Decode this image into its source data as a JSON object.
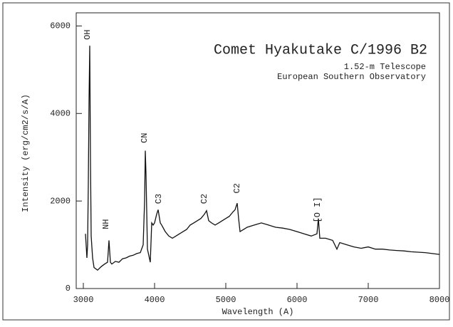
{
  "chart_data": {
    "type": "line",
    "title": "Comet Hyakutake C/1996 B2",
    "subtitle": [
      "1.52-m Telescope",
      "European Southern Observatory"
    ],
    "x_label": "Wavelength (A)",
    "y_label": "Intensity (erg/cm2/s/A)",
    "xlim": [
      2900,
      8000
    ],
    "ylim": [
      0,
      6300
    ],
    "xticks": [
      3000,
      4000,
      5000,
      6000,
      7000,
      8000
    ],
    "yticks": [
      0,
      2000,
      4000,
      6000
    ],
    "grid": false,
    "series": [
      {
        "color": "#111111",
        "x": [
          3030,
          3050,
          3060,
          3070,
          3080,
          3090,
          3100,
          3110,
          3130,
          3150,
          3200,
          3250,
          3300,
          3340,
          3360,
          3380,
          3400,
          3450,
          3500,
          3550,
          3600,
          3650,
          3700,
          3750,
          3800,
          3840,
          3860,
          3870,
          3880,
          3900,
          3920,
          3940,
          3960,
          3980,
          4000,
          4030,
          4050,
          4080,
          4100,
          4150,
          4200,
          4250,
          4300,
          4350,
          4400,
          4450,
          4500,
          4550,
          4600,
          4650,
          4700,
          4730,
          4760,
          4800,
          4850,
          4900,
          4950,
          5000,
          5050,
          5100,
          5130,
          5160,
          5180,
          5200,
          5250,
          5300,
          5400,
          5500,
          5600,
          5700,
          5800,
          5900,
          6000,
          6100,
          6200,
          6280,
          6300,
          6320,
          6400,
          6500,
          6560,
          6600,
          6700,
          6800,
          6900,
          7000,
          7100,
          7200,
          7300,
          7400,
          7500,
          7600,
          7700,
          7800,
          7900,
          8000
        ],
        "values": [
          1250,
          700,
          1000,
          2400,
          4300,
          5550,
          3000,
          1200,
          700,
          480,
          420,
          500,
          560,
          600,
          1100,
          600,
          560,
          620,
          600,
          680,
          700,
          740,
          760,
          800,
          820,
          1000,
          2000,
          3150,
          2600,
          900,
          750,
          600,
          1500,
          1450,
          1500,
          1700,
          1800,
          1500,
          1450,
          1300,
          1200,
          1150,
          1200,
          1250,
          1300,
          1350,
          1450,
          1500,
          1550,
          1600,
          1700,
          1780,
          1550,
          1500,
          1450,
          1500,
          1550,
          1600,
          1650,
          1750,
          1800,
          1950,
          1600,
          1300,
          1350,
          1400,
          1450,
          1500,
          1450,
          1400,
          1380,
          1350,
          1300,
          1250,
          1200,
          1250,
          1600,
          1150,
          1150,
          1100,
          900,
          1050,
          1000,
          950,
          920,
          950,
          900,
          900,
          880,
          870,
          860,
          840,
          830,
          820,
          800,
          780
        ]
      }
    ],
    "annotations": [
      {
        "text": "OH",
        "x": 3060,
        "y": 5800
      },
      {
        "text": "NH",
        "x": 3320,
        "y": 1470
      },
      {
        "text": "CN",
        "x": 3860,
        "y": 3440
      },
      {
        "text": "C3",
        "x": 4060,
        "y": 2050
      },
      {
        "text": "C2",
        "x": 4700,
        "y": 2050
      },
      {
        "text": "C2",
        "x": 5160,
        "y": 2290
      },
      {
        "text": "[O I]",
        "x": 6290,
        "y": 1800
      }
    ]
  }
}
